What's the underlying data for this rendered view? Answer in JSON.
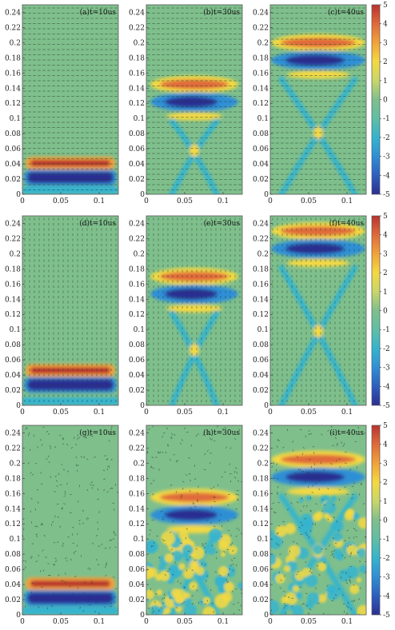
{
  "chart_data": {
    "type": "heatmap",
    "layout": "3 rows x 3 columns of field snapshots, one colorbar per row",
    "x_ticks": [
      0,
      0.05,
      0.1
    ],
    "y_ticks": [
      0,
      0.02,
      0.04,
      0.06,
      0.08,
      0.1,
      0.12,
      0.14,
      0.16,
      0.18,
      0.2,
      0.22,
      0.24
    ],
    "xlim": [
      0,
      0.125
    ],
    "ylim": [
      0,
      0.25
    ],
    "colorbar": {
      "min": -5,
      "max": 5,
      "ticks": [
        5,
        4,
        3,
        2,
        1,
        0,
        -1,
        -2,
        -3,
        -4,
        -5
      ]
    },
    "colormap": [
      "#2b2f92",
      "#2c5fbf",
      "#2f8fd6",
      "#35b4cf",
      "#5fbfa5",
      "#7fbf8c",
      "#c9d66a",
      "#f4d942",
      "#f2a23a",
      "#e06a3a",
      "#b8332f"
    ],
    "background_color": "#7fbf8c",
    "panels": [
      {
        "label": "(a)t=10us",
        "row": 0,
        "col": 0,
        "front_y": 0.04,
        "pattern": "vectors-regular"
      },
      {
        "label": "(b)t=30us",
        "row": 0,
        "col": 1,
        "front_y": 0.145,
        "pattern": "vectors-regular"
      },
      {
        "label": "(c)t=40us",
        "row": 0,
        "col": 2,
        "front_y": 0.2,
        "pattern": "vectors-regular"
      },
      {
        "label": "(d)t=10us",
        "row": 1,
        "col": 0,
        "front_y": 0.045,
        "pattern": "vectors-vertical"
      },
      {
        "label": "(e)t=30us",
        "row": 1,
        "col": 1,
        "front_y": 0.17,
        "pattern": "vectors-vertical"
      },
      {
        "label": "(f)t=40us",
        "row": 1,
        "col": 2,
        "front_y": 0.23,
        "pattern": "vectors-vertical"
      },
      {
        "label": "(g)t=10us",
        "row": 2,
        "col": 0,
        "front_y": 0.04,
        "pattern": "vectors-random"
      },
      {
        "label": "(h)t=30us",
        "row": 2,
        "col": 1,
        "front_y": 0.155,
        "pattern": "vectors-random"
      },
      {
        "label": "(i)t=40us",
        "row": 2,
        "col": 2,
        "front_y": 0.205,
        "pattern": "vectors-random"
      }
    ]
  }
}
